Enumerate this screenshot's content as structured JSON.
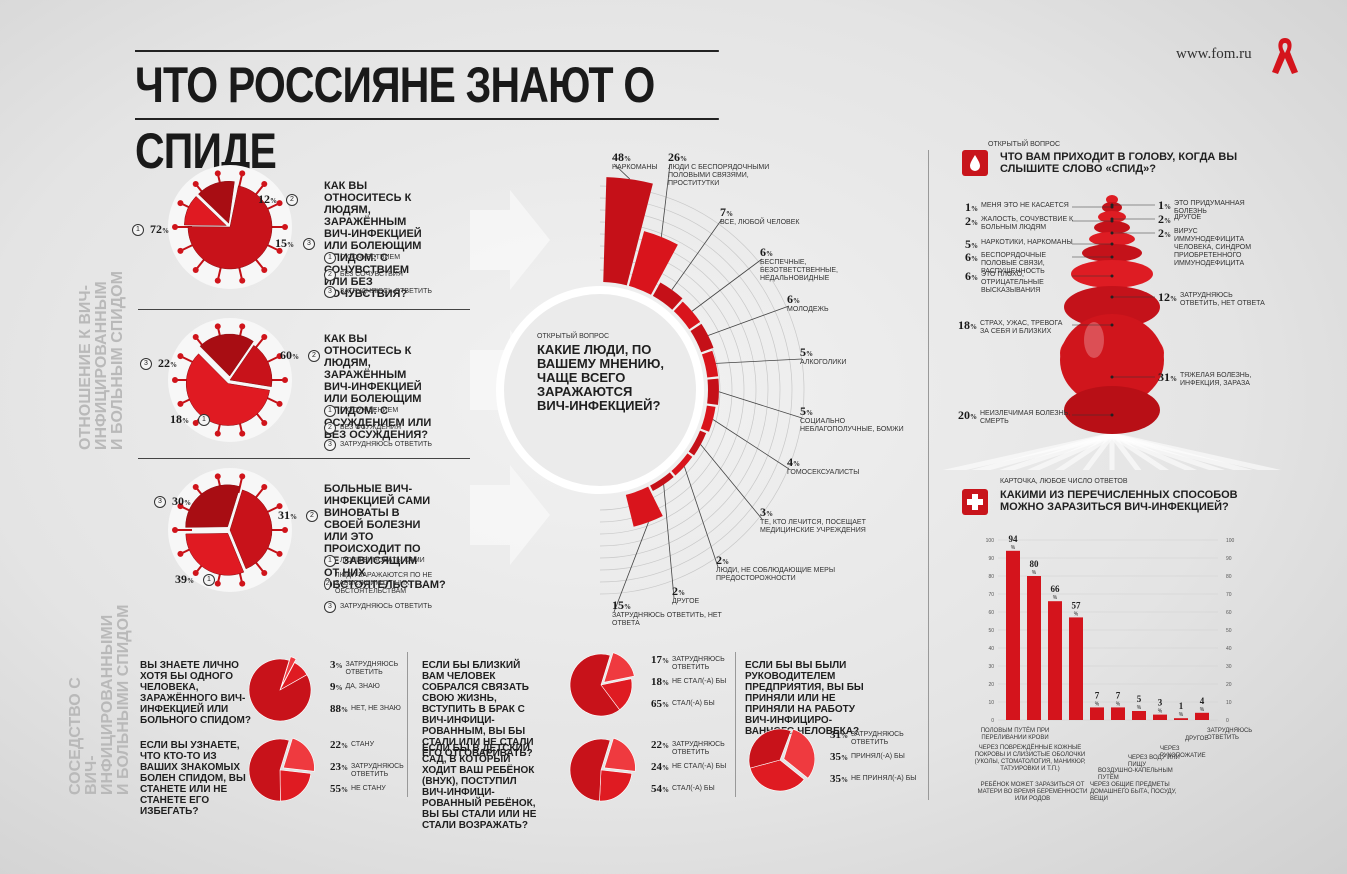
{
  "header": {
    "title": "ЧТО РОССИЯНЕ ЗНАЮТ О СПИДЕ",
    "site": "www.fom.ru"
  },
  "side_labels": {
    "attitude": "ОТНОШЕНИЕ К ВИЧ-ИНФИЦИРОВАННЫМ\nИ БОЛЬНЫМ СПИДОМ",
    "neighborhood": "СОСЕДСТВО С\nВИЧ-ИНФИЦИРОВАННЫМИ\nИ БОЛЬНЫМИ СПИДОМ"
  },
  "attitude": [
    {
      "question": "КАК ВЫ ОТНОСИТЕСЬ К ЛЮДЯМ, ЗАРАЖЁННЫМ ВИЧ-ИНФЕКЦИЕЙ ИЛИ БОЛЕЮЩИМ СПИДОМ: С СОЧУВСТВИЕМ ИЛИ БЕЗ СОЧУВСТВИЯ?",
      "answers": [
        {
          "n": "1",
          "label": "С СОЧУВСТВИЕМ",
          "value": 72
        },
        {
          "n": "2",
          "label": "БЕЗ СОЧУВСТВИЯ",
          "value": 12
        },
        {
          "n": "3",
          "label": "ЗАТРУДНЯЮСЬ ОТВЕТИТЬ",
          "value": 15
        }
      ]
    },
    {
      "question": "КАК ВЫ ОТНОСИТЕСЬ К ЛЮДЯМ, ЗАРАЖЁННЫМ ВИЧ-ИНФЕКЦИЕЙ ИЛИ БОЛЕЮЩИМ СПИДОМ: С ОСУЖДЕНИЕМ ИЛИ БЕЗ ОСУЖДЕНИЯ?",
      "answers": [
        {
          "n": "1",
          "label": "С ОСУЖДЕНИЕМ",
          "value": 18
        },
        {
          "n": "2",
          "label": "БЕЗ ОСУЖДЕНИЯ",
          "value": 60
        },
        {
          "n": "3",
          "label": "ЗАТРУДНЯЮСЬ ОТВЕТИТЬ",
          "value": 22
        }
      ]
    },
    {
      "question": "БОЛЬНЫЕ ВИЧ-ИНФЕКЦИЕЙ САМИ ВИНОВАТЫ В СВОЕЙ БОЛЕЗНИ ИЛИ ЭТО ПРОИСХОДИТ ПО НЕ ЗАВИСЯЩИМ ОТ НИХ ОБСТОЯТЕЛЬСТВАМ?",
      "answers": [
        {
          "n": "1",
          "label": "ЛЮДИ ВИНОВАТЫ САМИ",
          "value": 39
        },
        {
          "n": "2",
          "label": "ЛЮДИ ЗАРАЖАЮТСЯ ПО НЕ ЗАВИСЯЩИМ ОТ НИХ ОБСТОЯТЕЛЬСТВАМ",
          "value": 31
        },
        {
          "n": "3",
          "label": "ЗАТРУДНЯЮСЬ ОТВЕТИТЬ",
          "value": 30
        }
      ]
    }
  ],
  "center": {
    "tag": "ОТКРЫТЫЙ ВОПРОС",
    "question": "КАКИЕ ЛЮДИ, ПО ВАШЕМУ МНЕНИЮ, ЧАЩЕ ВСЕГО ЗАРАЖАЮТСЯ ВИЧ-ИНФЕКЦИЕЙ?"
  },
  "neighborhood": [
    {
      "question": "ВЫ ЗНАЕТЕ ЛИЧНО ХОТЯ БЫ ОДНОГО ЧЕЛОВЕКА, ЗАРАЖЁННОГО ВИЧ-ИНФЕКЦИЕЙ ИЛИ БОЛЬНОГО СПИДОМ?",
      "answers": [
        {
          "label": "ЗАТРУДНЯЮСЬ ОТВЕТИТЬ",
          "value": 3
        },
        {
          "label": "ДА, ЗНАЮ",
          "value": 9
        },
        {
          "label": "НЕТ, НЕ ЗНАЮ",
          "value": 88
        }
      ]
    },
    {
      "question": "ЕСЛИ ВЫ УЗНАЕТЕ, ЧТО КТО-ТО ИЗ ВАШИХ ЗНАКОМЫХ БОЛЕН СПИДОМ, ВЫ СТАНЕТЕ ИЛИ НЕ СТАНЕТЕ ЕГО ИЗБЕГАТЬ?",
      "answers": [
        {
          "label": "СТАНУ",
          "value": 22
        },
        {
          "label": "ЗАТРУДНЯЮСЬ ОТВЕТИТЬ",
          "value": 23
        },
        {
          "label": "НЕ СТАНУ",
          "value": 55
        }
      ]
    },
    {
      "question": "ЕСЛИ БЫ БЛИЗКИЙ ВАМ ЧЕЛОВЕК СОБРАЛСЯ СВЯЗАТЬ СВОЮ ЖИЗНЬ, ВСТУПИТЬ В БРАК С ВИЧ-ИНФИЦИ-РОВАННЫМ, ВЫ БЫ СТАЛИ ИЛИ НЕ СТАЛИ ЕГО ОТГОВАРИВАТЬ?",
      "answers": [
        {
          "label": "ЗАТРУДНЯЮСЬ ОТВЕТИТЬ",
          "value": 17
        },
        {
          "label": "НЕ СТАЛ(-А) БЫ",
          "value": 18
        },
        {
          "label": "СТАЛ(-А) БЫ",
          "value": 65
        }
      ]
    },
    {
      "question": "ЕСЛИ БЫ В ДЕТСКИЙ САД, В КОТОРЫЙ ХОДИТ ВАШ РЕБЁНОК (ВНУК), ПОСТУПИЛ ВИЧ-ИНФИЦИ-РОВАННЫЙ РЕБЁНОК, ВЫ БЫ СТАЛИ ИЛИ НЕ СТАЛИ ВОЗРАЖАТЬ?",
      "answers": [
        {
          "label": "ЗАТРУДНЯЮСЬ ОТВЕТИТЬ",
          "value": 22
        },
        {
          "label": "НЕ СТАЛ(-А) БЫ",
          "value": 24
        },
        {
          "label": "СТАЛ(-А) БЫ",
          "value": 54
        }
      ]
    },
    {
      "question": "ЕСЛИ БЫ ВЫ БЫЛИ РУКОВОДИТЕЛЕМ ПРЕДПРИЯТИЯ, ВЫ БЫ ПРИНЯЛИ ИЛИ НЕ ПРИНЯЛИ НА РАБОТУ ВИЧ-ИНФИЦИРО-ВАННОГО ЧЕЛОВЕКА?",
      "answers": [
        {
          "label": "ЗАТРУДНЯЮСЬ ОТВЕТИТЬ",
          "value": 31
        },
        {
          "label": "ПРИНЯЛ(-А) БЫ",
          "value": 35
        },
        {
          "label": "НЕ ПРИНЯЛ(-А) БЫ",
          "value": 35
        }
      ]
    }
  ],
  "spid": {
    "tag": "ОТКРЫТЫЙ ВОПРОС",
    "question": "ЧТО ВАМ ПРИХОДИТ В ГОЛОВУ, КОГДА ВЫ СЛЫШИТЕ СЛОВО «СПИД»?"
  },
  "ways": {
    "tag": "КАРТОЧКА, ЛЮБОЕ ЧИСЛО ОТВЕТОВ",
    "question": "КАКИМИ ИЗ ПЕРЕЧИСЛЕННЫХ СПОСОБОВ МОЖНО ЗАРАЗИТЬСЯ ВИЧ-ИНФЕКЦИЕЙ?"
  },
  "chart_data": [
    {
      "type": "bar",
      "title": "КАКИЕ ЛЮДИ, ПО ВАШЕМУ МНЕНИЮ, ЧАЩЕ ВСЕГО ЗАРАЖАЮТСЯ ВИЧ-ИНФЕКЦИЕЙ?",
      "categories": [
        "НАРКОМАНЫ",
        "ЛЮДИ С БЕСПОРЯДОЧНЫМИ ПОЛОВЫМИ СВЯЗЯМИ, ПРОСТИТУТКИ",
        "ВСЕ, ЛЮБОЙ ЧЕЛОВЕК",
        "БЕСПЕЧНЫЕ, БЕЗОТВЕТСТВЕННЫЕ, НЕДАЛЬНОВИДНЫЕ",
        "МОЛОДЕЖЬ",
        "АЛКОГОЛИКИ",
        "СОЦИАЛЬНО НЕБЛАГОПОЛУЧНЫЕ, БОМЖИ",
        "ГОМОСЕКСУАЛИСТЫ",
        "ТЕ, КТО ЛЕЧИТСЯ, ПОСЕЩАЕТ МЕДИЦИНСКИЕ УЧРЕЖДЕНИЯ",
        "ЛЮДИ, НЕ СОБЛЮДАЮЩИЕ МЕРЫ ПРЕДОСТОРОЖНОСТИ",
        "ДРУГОЕ",
        "ЗАТРУДНЯЮСЬ ОТВЕТИТЬ, НЕТ ОТВЕТА"
      ],
      "values": [
        48,
        26,
        7,
        6,
        6,
        5,
        5,
        4,
        3,
        2,
        2,
        15
      ]
    },
    {
      "type": "bar",
      "title": "ЧТО ВАМ ПРИХОДИТ В ГОЛОВУ, КОГДА ВЫ СЛЫШИТЕ СЛОВО «СПИД»?",
      "left": [
        {
          "label": "МЕНЯ ЭТО НЕ КАСАЕТСЯ",
          "value": 1
        },
        {
          "label": "ЖАЛОСТЬ, СОЧУВСТВИЕ К БОЛЬНЫМ ЛЮДЯМ",
          "value": 2
        },
        {
          "label": "НАРКОТИКИ, НАРКОМАНЫ",
          "value": 5
        },
        {
          "label": "БЕСПОРЯДОЧНЫЕ ПОЛОВЫЕ СВЯЗИ, РАСПУЩЕННОСТЬ",
          "value": 6
        },
        {
          "label": "ЭТО ПЛОХО, ОТРИЦАТЕЛЬНЫЕ ВЫСКАЗЫВАНИЯ",
          "value": 6
        },
        {
          "label": "СТРАХ, УЖАС, ТРЕВОГА ЗА СЕБЯ И БЛИЗКИХ",
          "value": 18
        },
        {
          "label": "НЕИЗЛЕЧИМАЯ БОЛЕЗНЬ, СМЕРТЬ",
          "value": 20
        }
      ],
      "right": [
        {
          "label": "ЭТО ПРИДУМАННАЯ БОЛЕЗНЬ",
          "value": 1
        },
        {
          "label": "ДРУГОЕ",
          "value": 2
        },
        {
          "label": "ВИРУС ИММУНОДЕФИЦИТА ЧЕЛОВЕКА, СИНДРОМ ПРИОБРЕТЕННОГО ИММУНОДЕФИЦИТА",
          "value": 2
        },
        {
          "label": "ЗАТРУДНЯЮСЬ ОТВЕТИТЬ, НЕТ ОТВЕТА",
          "value": 12
        },
        {
          "label": "ТЯЖЕЛАЯ БОЛЕЗНЬ, ИНФЕКЦИЯ, ЗАРАЗА",
          "value": 31
        }
      ]
    },
    {
      "type": "bar",
      "title": "КАКИМИ ИЗ ПЕРЕЧИСЛЕННЫХ СПОСОБОВ МОЖНО ЗАРАЗИТЬСЯ ВИЧ-ИНФЕКЦИЕЙ?",
      "categories": [
        "ПОЛОВЫМ ПУТЁМ",
        "ПРИ ПЕРЕЛИВАНИИ КРОВИ",
        "ЧЕРЕЗ ПОВРЕЖДЁННЫЕ КОЖНЫЕ ПОКРОВЫ И СЛИЗИСТЫЕ ОБОЛОЧКИ (УКОЛЫ, СТОМАТОЛОГИЯ, МАНИКЮР, ТАТУИРОВКИ И Т.П.)",
        "РЕБЁНОК МОЖЕТ ЗАРАЗИТЬСЯ ОТ МАТЕРИ ВО ВРЕМЯ БЕРЕМЕННОСТИ ИЛИ РОДОВ",
        "ЧЕРЕЗ ОБЩИЕ ПРЕДМЕТЫ ДОМАШНЕГО БЫТА, ПОСУДУ, ВЕЩИ",
        "ВОЗДУШНО-КАПЕЛЬНЫМ ПУТЁМ",
        "ЧЕРЕЗ ВОДУ ИЛИ ПИЩУ",
        "ЧЕРЕЗ РУКОПОЖАТИЕ",
        "ДРУГОЕ",
        "ЗАТРУДНЯЮСЬ ОТВЕТИТЬ"
      ],
      "values": [
        94,
        80,
        66,
        57,
        7,
        7,
        5,
        3,
        1,
        4
      ],
      "ylim": [
        0,
        100
      ],
      "ticks": [
        "100",
        "90",
        "80",
        "70",
        "60",
        "50",
        "40",
        "30",
        "20",
        "10",
        "0"
      ]
    }
  ]
}
